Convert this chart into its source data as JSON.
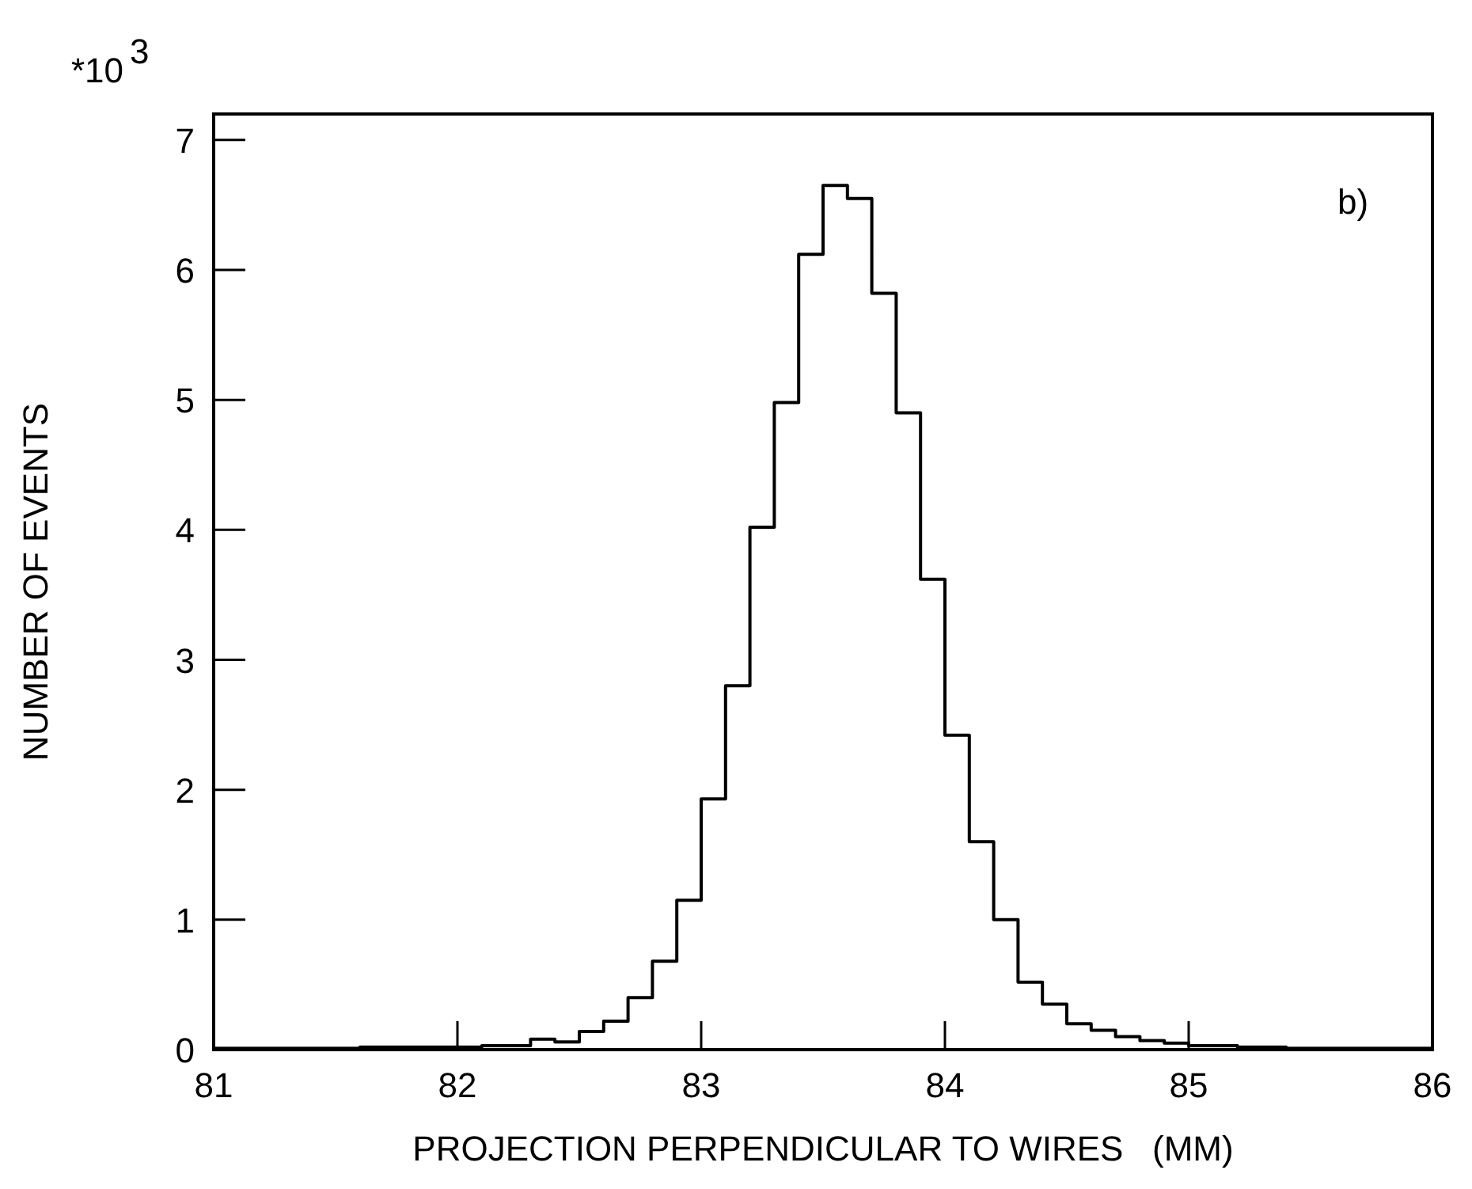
{
  "chart_data": {
    "type": "histogram",
    "xlabel": "PROJECTION PERPENDICULAR TO WIRES   (MM)",
    "ylabel": "NUMBER OF EVENTS",
    "annotations": [
      "*10$^{3}$",
      "b)"
    ],
    "bins": [
      81,
      81.1,
      81.2,
      81.3,
      81.4,
      81.5,
      81.6,
      81.7,
      81.8,
      81.9,
      82,
      82.1,
      82.2,
      82.3,
      82.4,
      82.5,
      82.6,
      82.7,
      82.8,
      82.9,
      83,
      83.1,
      83.2,
      83.3,
      83.4,
      83.5,
      83.6,
      83.7,
      83.8,
      83.9,
      84,
      84.1,
      84.2,
      84.3,
      84.4,
      84.5,
      84.6,
      84.7,
      84.8,
      84.9,
      85,
      85.1,
      85.2,
      85.3,
      85.4,
      85.5,
      85.6,
      85.7,
      85.8,
      85.9,
      86
    ],
    "values": [
      0.01,
      0.01,
      0.01,
      0.01,
      0.01,
      0.01,
      0.02,
      0.02,
      0.02,
      0.02,
      0.02,
      0.03,
      0.03,
      0.08,
      0.06,
      0.14,
      0.22,
      0.4,
      0.68,
      1.15,
      1.93,
      2.8,
      4.02,
      4.98,
      6.12,
      6.65,
      6.55,
      5.82,
      4.9,
      3.62,
      2.42,
      1.6,
      1.0,
      0.52,
      0.35,
      0.2,
      0.15,
      0.1,
      0.07,
      0.05,
      0.03,
      0.03,
      0.02,
      0.02,
      0.01,
      0.01,
      0.01,
      0.01,
      0.01,
      0.01
    ],
    "color": "#000000",
    "xlim": [
      81,
      86
    ],
    "ylim": [
      0,
      7.2
    ],
    "xticks": [
      81,
      82,
      83,
      84,
      85,
      86
    ],
    "yticks": [
      0,
      1,
      2,
      3,
      4,
      5,
      6,
      7
    ]
  }
}
